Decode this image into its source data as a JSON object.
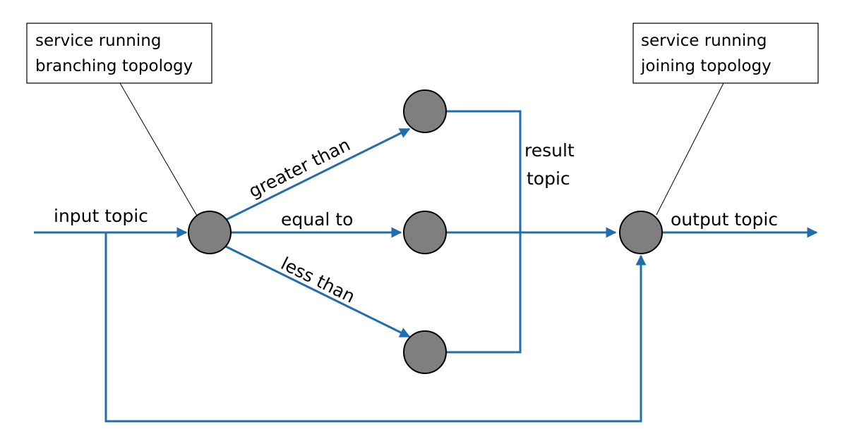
{
  "colors": {
    "edge": "#1f6fab",
    "node_fill": "#7f7f7f",
    "node_stroke": "#000000"
  },
  "notes": {
    "branching": {
      "line1": "service running",
      "line2": "branching topology"
    },
    "joining": {
      "line1": "service running",
      "line2": "joining topology"
    }
  },
  "labels": {
    "input_topic": "input topic",
    "greater_than": "greater than",
    "equal_to": "equal to",
    "less_than": "less than",
    "result_topic_line1": "result",
    "result_topic_line2": "topic",
    "output_topic": "output topic"
  }
}
